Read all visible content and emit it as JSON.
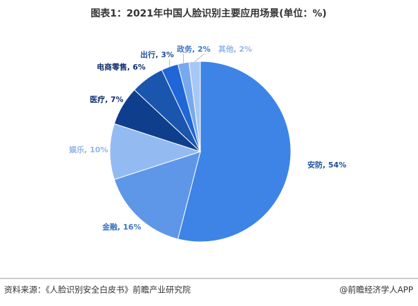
{
  "chart_data": {
    "type": "pie",
    "title": "图表1：2021年中国人脸识别主要应用场景(单位：%)",
    "labels": [
      "安防, 54%",
      "金融, 16%",
      "娱乐, 10%",
      "医疗, 7%",
      "电商零售, 6%",
      "出行, 3%",
      "政务, 2%",
      "其他, 2%"
    ],
    "values": [
      54,
      16,
      10,
      7,
      6,
      3,
      2,
      2
    ],
    "colors": [
      "#3d84e6",
      "#5e97e8",
      "#93bbf2",
      "#0f3f8c",
      "#1a56ad",
      "#2066d6",
      "#78a9ee",
      "#a8c7f3"
    ],
    "label_colors": [
      "#1f4f9c",
      "#3e74c4",
      "#93b5e6",
      "#0f2f6e",
      "#0f2f6e",
      "#1f4f9c",
      "#3e74c4",
      "#93b5e6"
    ],
    "source": "资料来源：《人脸识别安全白皮书》前瞻产业研究院",
    "brand": "@前瞻经济学人APP"
  }
}
